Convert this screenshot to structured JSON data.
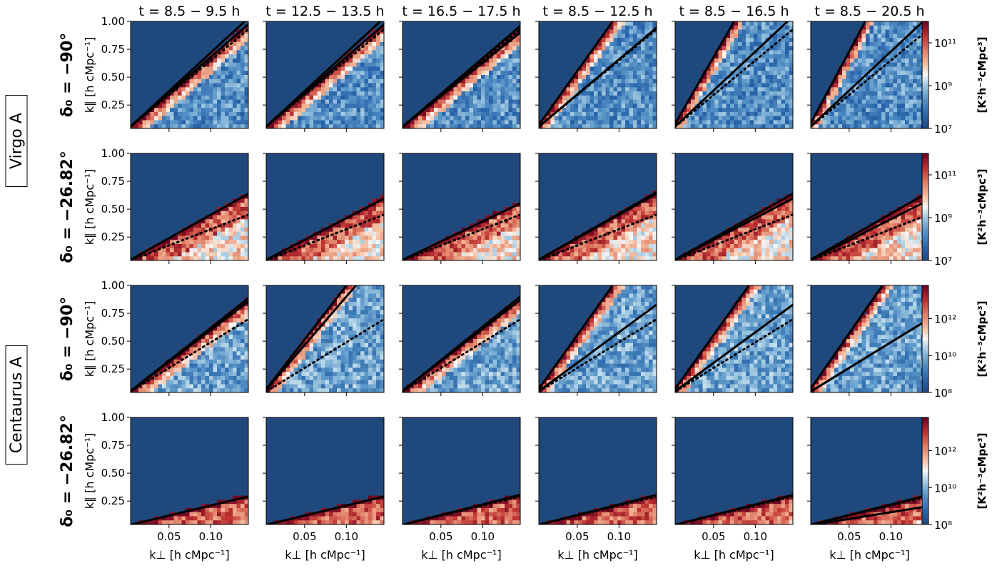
{
  "chart_data": {
    "type": "heatmap",
    "description_grid": "4 rows x 6 columns of 2D power spectrum panels",
    "column_titles": [
      "t = 8.5 − 9.5 h",
      "t = 12.5 − 13.5 h",
      "t = 16.5 − 17.5 h",
      "t = 8.5 − 12.5 h",
      "t = 8.5 − 16.5 h",
      "t = 8.5 − 20.5 h"
    ],
    "sources": [
      "Virgo A",
      "Centaurus A"
    ],
    "rows": [
      {
        "label": "δ₀ = −90°",
        "source_index": 0,
        "colorbar_ticks": [
          "10⁷",
          "10⁹",
          "10¹¹"
        ],
        "log_range": [
          7,
          12
        ]
      },
      {
        "label": "δ₀ = −26.82°",
        "source_index": 0,
        "colorbar_ticks": [
          "10⁷",
          "10⁹",
          "10¹¹"
        ],
        "log_range": [
          7,
          12
        ]
      },
      {
        "label": "δ₀ = −90°",
        "source_index": 1,
        "colorbar_ticks": [
          "10⁸",
          "10¹⁰",
          "10¹²"
        ],
        "log_range": [
          8,
          13.8
        ]
      },
      {
        "label": "δ₀ = −26.82°",
        "source_index": 1,
        "colorbar_ticks": [
          "10⁸",
          "10¹⁰",
          "10¹²"
        ],
        "log_range": [
          8,
          13.8
        ]
      }
    ],
    "colorbar_label": "[K²h⁻³cMpc³]",
    "xlabel": "k⊥ [h cMpc⁻¹]",
    "ylabel": "k∥ [h cMpc⁻¹]",
    "xlim": [
      0.004,
      0.145
    ],
    "ylim": [
      0.04,
      1.0
    ],
    "x_ticks": [
      "0.05",
      "0.10"
    ],
    "x_tick_values": [
      0.05,
      0.1
    ],
    "y_ticks": [
      "1.00",
      "0.75",
      "0.50",
      "0.25"
    ],
    "y_tick_values": [
      1.0,
      0.75,
      0.5,
      0.25
    ],
    "horizon_line_slopes": [
      [
        [
          6.5,
          6.9
        ],
        [
          6.5,
          6.9
        ],
        [
          6.0,
          6.4
        ],
        [
          6.3,
          10.5
        ],
        [
          7.0,
          13.0
        ],
        [
          7.0,
          14.0
        ]
      ],
      [
        [
          4.2
        ],
        [
          3.9
        ],
        [
          3.6
        ],
        [
          4.2,
          4.3
        ],
        [
          3.9,
          4.2
        ],
        [
          3.8,
          4.3
        ]
      ],
      [
        [
          5.7,
          5.9
        ],
        [
          8.7,
          9.7
        ],
        [
          5.8,
          6.0
        ],
        [
          5.5,
          10.5
        ],
        [
          5.5,
          10.5
        ],
        [
          4.6,
          10.8
        ]
      ],
      [
        [
          1.8
        ],
        [
          1.8
        ],
        [
          1.9
        ],
        [
          1.9
        ],
        [
          1.9
        ],
        [
          1.2,
          1.9
        ]
      ]
    ],
    "dotted_line_slopes": [
      6.2,
      2.9,
      4.6,
      1.8
    ]
  }
}
